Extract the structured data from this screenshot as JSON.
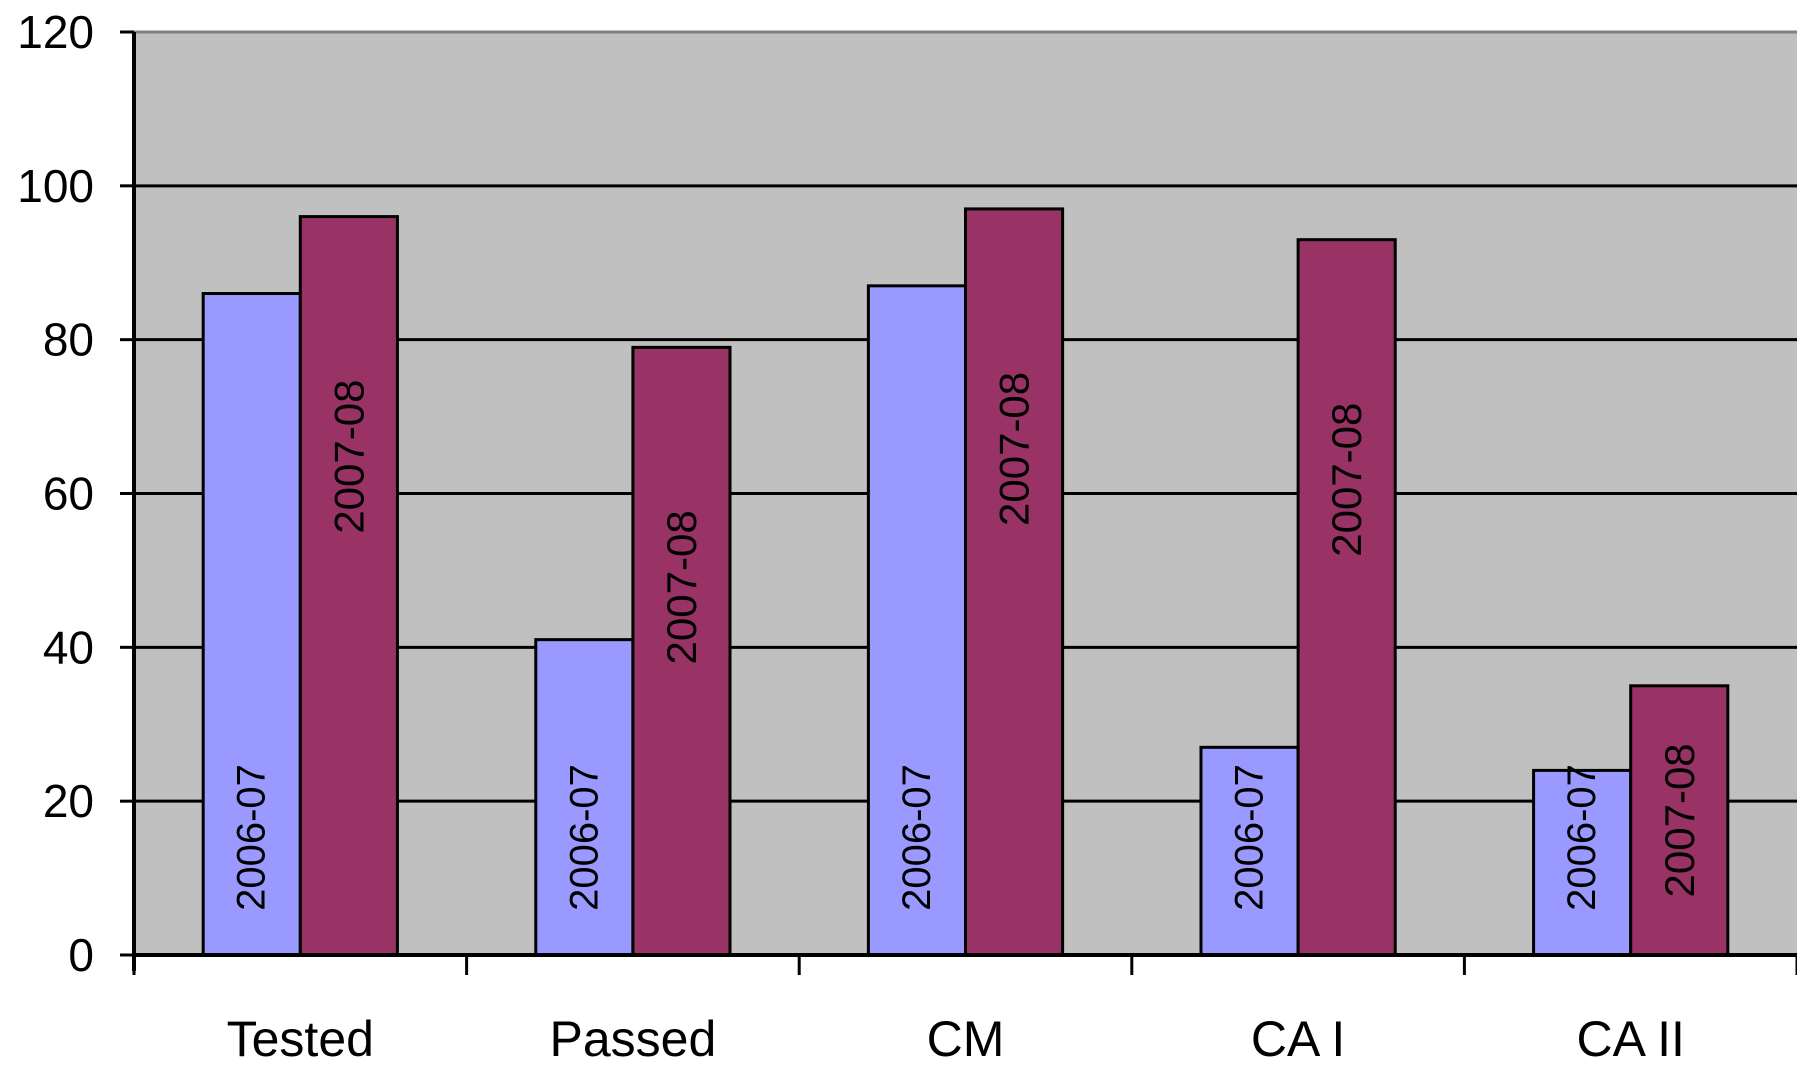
{
  "chart_data": {
    "type": "bar",
    "categories": [
      "Tested",
      "Passed",
      "CM",
      "CA I",
      "CA II"
    ],
    "series": [
      {
        "name": "2006-07",
        "values": [
          86,
          41,
          87,
          27,
          24
        ],
        "color": "#9999ff"
      },
      {
        "name": "2007-08",
        "values": [
          96,
          79,
          97,
          93,
          35
        ],
        "color": "#993366"
      }
    ],
    "title": "",
    "xlabel": "",
    "ylabel": "",
    "ylim": [
      0,
      120
    ],
    "yticks": [
      0,
      20,
      40,
      60,
      80,
      100,
      120
    ],
    "grid": true,
    "plot_background": "#c0c0c0",
    "data_labels": "series name, rotated vertical inside bars",
    "legend": "none"
  }
}
